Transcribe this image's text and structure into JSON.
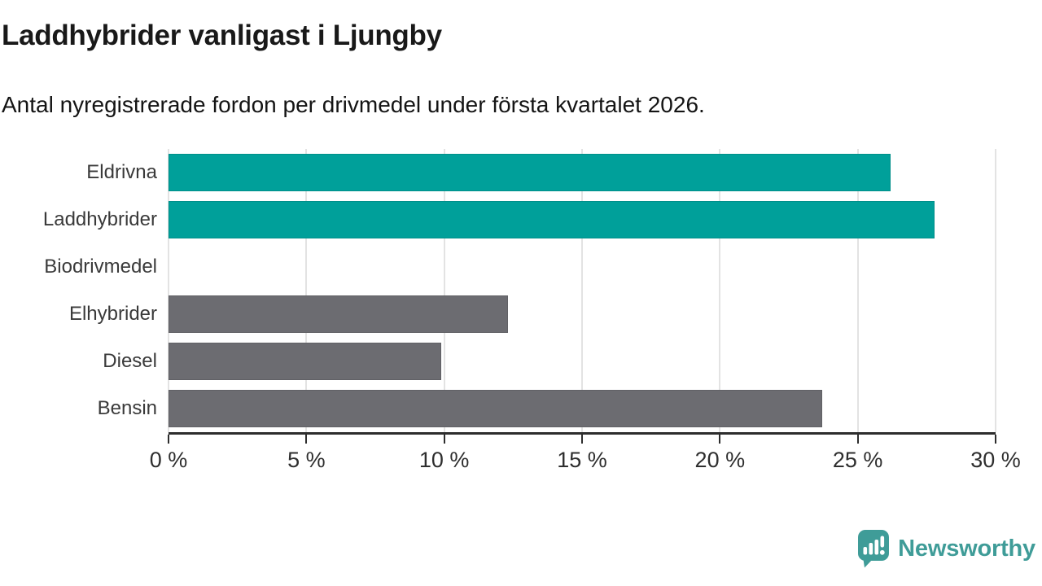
{
  "header": {
    "title": "Laddhybrider vanligast i Ljungby",
    "subtitle": "Antal nyregistrerade fordon per drivmedel under första kvartalet 2026."
  },
  "chart_data": {
    "type": "bar",
    "orientation": "horizontal",
    "title": "Laddhybrider vanligast i Ljungby",
    "subtitle": "Antal nyregistrerade fordon per drivmedel under första kvartalet 2026.",
    "categories": [
      "Eldrivna",
      "Laddhybrider",
      "Biodrivmedel",
      "Elhybrider",
      "Diesel",
      "Bensin"
    ],
    "values": [
      26.2,
      27.8,
      0,
      12.3,
      9.9,
      23.7
    ],
    "unit": "%",
    "bar_colors": [
      "#00a09a",
      "#00a09a",
      "#00a09a",
      "#6c6c71",
      "#6c6c71",
      "#6c6c71"
    ],
    "xlim": [
      0,
      30
    ],
    "x_ticks": [
      0,
      5,
      10,
      15,
      20,
      25,
      30
    ],
    "x_tick_labels": [
      "0 %",
      "5 %",
      "10 %",
      "15 %",
      "20 %",
      "25 %",
      "30 %"
    ],
    "grid": "vertical",
    "legend": "none"
  },
  "colors": {
    "accent_teal": "#00a09a",
    "neutral_gray": "#6c6c71",
    "axis": "#2d2d2d",
    "gridline": "#e3e3e3",
    "logo_teal": "#3f9c98"
  },
  "footer": {
    "brand": "Newsworthy",
    "logo_icon": "newsworthy-speech-bubble-chart-icon"
  }
}
